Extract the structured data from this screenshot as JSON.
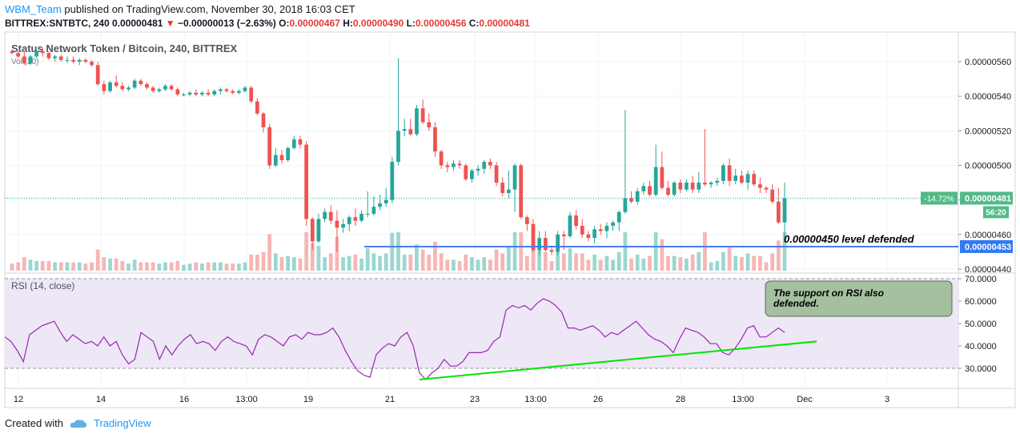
{
  "header": {
    "user": "WBM_Team",
    "published": "published on TradingView.com, November 30, 2018 16:03 CET",
    "symbol": "BITTREX:SNTBTC, 240",
    "last": "0.00000481",
    "change": "−0.00000013 (−2.63%)",
    "o_label": "O:",
    "o_value": "0.00000467",
    "h_label": "H:",
    "h_value": "0.00000490",
    "l_label": "L:",
    "l_value": "0.00000456",
    "c_label": "C:",
    "c_value": "0.00000481"
  },
  "footer": {
    "created_with": "Created with",
    "brand": "TradingView"
  },
  "colors": {
    "up": "#26a69a",
    "down": "#ef5350",
    "support_line": "#2962ff",
    "rsi_line": "#9c27b0",
    "rsi_trend": "#00e600",
    "rsi_bg": "#ede7f6"
  },
  "chart_data": {
    "type": "candlestick",
    "title": "Status Network Token / Bitcoin, 240, BITTREX",
    "volume_label": "Vol (20)",
    "x_ticks": [
      "12",
      "14",
      "16",
      "13:00",
      "19",
      "21",
      "23",
      "13:00",
      "26",
      "28",
      "13:00",
      "Dec",
      "3"
    ],
    "price_axis": {
      "ticks": [
        "0.00000560",
        "0.00000540",
        "0.00000520",
        "0.00000500",
        "0.00000480",
        "0.00000460",
        "0.00000440"
      ],
      "ylim": [
        4.4e-06,
        5.6e-06
      ]
    },
    "price_labels": {
      "change_pct": "-14.72%",
      "last": "0.00000481",
      "countdown": "56:20",
      "support": "0.00000453"
    },
    "support_level": 4.53e-06,
    "candles": [
      [
        5.66,
        5.67,
        5.64,
        5.65
      ],
      [
        5.65,
        5.66,
        5.62,
        5.63
      ],
      [
        5.63,
        5.66,
        5.58,
        5.59
      ],
      [
        5.59,
        5.64,
        5.58,
        5.63
      ],
      [
        5.63,
        5.67,
        5.62,
        5.66
      ],
      [
        5.66,
        5.68,
        5.63,
        5.65
      ],
      [
        5.65,
        5.66,
        5.61,
        5.62
      ],
      [
        5.62,
        5.64,
        5.6,
        5.63
      ],
      [
        5.63,
        5.64,
        5.6,
        5.61
      ],
      [
        5.61,
        5.63,
        5.59,
        5.61
      ],
      [
        5.61,
        5.63,
        5.59,
        5.6
      ],
      [
        5.6,
        5.62,
        5.58,
        5.61
      ],
      [
        5.61,
        5.62,
        5.59,
        5.6
      ],
      [
        5.6,
        5.61,
        5.57,
        5.58
      ],
      [
        5.58,
        5.6,
        5.46,
        5.47
      ],
      [
        5.47,
        5.49,
        5.41,
        5.43
      ],
      [
        5.43,
        5.49,
        5.42,
        5.48
      ],
      [
        5.48,
        5.52,
        5.45,
        5.46
      ],
      [
        5.46,
        5.48,
        5.43,
        5.44
      ],
      [
        5.44,
        5.46,
        5.43,
        5.45
      ],
      [
        5.45,
        5.5,
        5.44,
        5.49
      ],
      [
        5.49,
        5.5,
        5.46,
        5.47
      ],
      [
        5.47,
        5.48,
        5.44,
        5.45
      ],
      [
        5.45,
        5.46,
        5.42,
        5.43
      ],
      [
        5.43,
        5.45,
        5.42,
        5.44
      ],
      [
        5.44,
        5.47,
        5.43,
        5.46
      ],
      [
        5.46,
        5.47,
        5.43,
        5.44
      ],
      [
        5.44,
        5.45,
        5.4,
        5.41
      ],
      [
        5.41,
        5.42,
        5.4,
        5.41
      ],
      [
        5.41,
        5.43,
        5.4,
        5.42
      ],
      [
        5.42,
        5.44,
        5.4,
        5.41
      ],
      [
        5.41,
        5.43,
        5.4,
        5.42
      ],
      [
        5.42,
        5.44,
        5.4,
        5.41
      ],
      [
        5.41,
        5.44,
        5.4,
        5.43
      ],
      [
        5.43,
        5.45,
        5.41,
        5.44
      ],
      [
        5.44,
        5.45,
        5.42,
        5.43
      ],
      [
        5.43,
        5.44,
        5.41,
        5.42
      ],
      [
        5.42,
        5.44,
        5.41,
        5.43
      ],
      [
        5.43,
        5.46,
        5.42,
        5.45
      ],
      [
        5.45,
        5.46,
        5.36,
        5.37
      ],
      [
        5.37,
        5.39,
        5.29,
        5.3
      ],
      [
        5.3,
        5.31,
        5.19,
        5.22
      ],
      [
        5.22,
        5.24,
        4.98,
        5.0
      ],
      [
        5.0,
        5.1,
        4.99,
        5.06
      ],
      [
        5.06,
        5.09,
        5.01,
        5.03
      ],
      [
        5.03,
        5.11,
        5.02,
        5.1
      ],
      [
        5.1,
        5.17,
        5.09,
        5.15
      ],
      [
        5.15,
        5.17,
        5.1,
        5.12
      ],
      [
        5.12,
        5.14,
        4.65,
        4.69
      ],
      [
        4.69,
        4.7,
        4.51,
        4.56
      ],
      [
        4.56,
        4.72,
        4.55,
        4.69
      ],
      [
        4.69,
        4.75,
        4.67,
        4.73
      ],
      [
        4.73,
        4.77,
        4.66,
        4.68
      ],
      [
        4.68,
        4.74,
        4.5,
        4.64
      ],
      [
        4.64,
        4.69,
        4.61,
        4.66
      ],
      [
        4.66,
        4.71,
        4.62,
        4.7
      ],
      [
        4.7,
        4.75,
        4.65,
        4.68
      ],
      [
        4.68,
        4.74,
        4.67,
        4.72
      ],
      [
        4.72,
        4.85,
        4.7,
        4.72
      ],
      [
        4.72,
        4.82,
        4.71,
        4.76
      ],
      [
        4.76,
        4.83,
        4.74,
        4.78
      ],
      [
        4.78,
        4.87,
        4.76,
        4.8
      ],
      [
        4.8,
        5.05,
        4.78,
        5.02
      ],
      [
        5.02,
        5.62,
        5.0,
        5.2
      ],
      [
        5.2,
        5.27,
        5.17,
        5.21
      ],
      [
        5.21,
        5.27,
        5.17,
        5.18
      ],
      [
        5.18,
        5.35,
        5.17,
        5.33
      ],
      [
        5.33,
        5.38,
        5.24,
        5.25
      ],
      [
        5.25,
        5.3,
        5.2,
        5.22
      ],
      [
        5.22,
        5.25,
        5.05,
        5.08
      ],
      [
        5.08,
        5.09,
        4.98,
        5.0
      ],
      [
        5.0,
        5.02,
        4.96,
        4.99
      ],
      [
        4.99,
        5.03,
        4.97,
        5.01
      ],
      [
        5.01,
        5.03,
        4.98,
        5.0
      ],
      [
        5.0,
        5.01,
        4.91,
        4.92
      ],
      [
        4.92,
        4.98,
        4.9,
        4.97
      ],
      [
        4.97,
        5.0,
        4.94,
        4.98
      ],
      [
        4.98,
        5.03,
        4.95,
        5.02
      ],
      [
        5.02,
        5.04,
        4.98,
        5.0
      ],
      [
        5.0,
        5.02,
        4.88,
        4.9
      ],
      [
        4.9,
        4.93,
        4.82,
        4.84
      ],
      [
        4.84,
        4.97,
        4.81,
        4.86
      ],
      [
        4.86,
        5.01,
        4.73,
        5.0
      ],
      [
        5.0,
        5.01,
        4.69,
        4.7
      ],
      [
        4.7,
        4.71,
        4.62,
        4.66
      ],
      [
        4.66,
        4.69,
        4.5,
        4.51
      ],
      [
        4.51,
        4.62,
        4.48,
        4.58
      ],
      [
        4.58,
        4.62,
        4.5,
        4.51
      ],
      [
        4.51,
        4.53,
        4.48,
        4.5
      ],
      [
        4.5,
        4.62,
        4.48,
        4.6
      ],
      [
        4.6,
        4.62,
        4.51,
        4.59
      ],
      [
        4.59,
        4.73,
        4.58,
        4.71
      ],
      [
        4.71,
        4.74,
        4.63,
        4.65
      ],
      [
        4.65,
        4.69,
        4.58,
        4.6
      ],
      [
        4.6,
        4.62,
        4.56,
        4.58
      ],
      [
        4.58,
        4.65,
        4.55,
        4.63
      ],
      [
        4.63,
        4.66,
        4.6,
        4.62
      ],
      [
        4.62,
        4.67,
        4.58,
        4.65
      ],
      [
        4.65,
        4.68,
        4.62,
        4.67
      ],
      [
        4.67,
        4.74,
        4.62,
        4.73
      ],
      [
        4.73,
        5.32,
        4.72,
        4.81
      ],
      [
        4.81,
        4.85,
        4.78,
        4.79
      ],
      [
        4.79,
        4.87,
        4.77,
        4.85
      ],
      [
        4.85,
        4.9,
        4.83,
        4.88
      ],
      [
        4.88,
        4.91,
        4.82,
        4.83
      ],
      [
        4.83,
        5.12,
        4.82,
        4.99
      ],
      [
        4.99,
        5.08,
        4.86,
        4.87
      ],
      [
        4.87,
        4.91,
        4.82,
        4.83
      ],
      [
        4.83,
        4.91,
        4.82,
        4.9
      ],
      [
        4.9,
        4.92,
        4.84,
        4.86
      ],
      [
        4.86,
        4.92,
        4.85,
        4.9
      ],
      [
        4.9,
        4.94,
        4.84,
        4.86
      ],
      [
        4.86,
        4.96,
        4.84,
        4.9
      ],
      [
        4.9,
        5.21,
        4.88,
        4.89
      ],
      [
        4.89,
        4.91,
        4.87,
        4.9
      ],
      [
        4.9,
        4.93,
        4.88,
        4.91
      ],
      [
        4.91,
        5.01,
        4.89,
        5.0
      ],
      [
        5.0,
        5.04,
        4.88,
        4.91
      ],
      [
        4.91,
        4.98,
        4.89,
        4.94
      ],
      [
        4.94,
        4.97,
        4.89,
        4.9
      ],
      [
        4.9,
        4.97,
        4.86,
        4.95
      ],
      [
        4.95,
        4.97,
        4.88,
        4.89
      ],
      [
        4.89,
        4.93,
        4.84,
        4.87
      ],
      [
        4.87,
        4.88,
        4.84,
        4.86
      ],
      [
        4.86,
        4.89,
        4.78,
        4.79
      ],
      [
        4.79,
        4.87,
        4.66,
        4.67
      ],
      [
        4.67,
        4.9,
        4.56,
        4.81
      ]
    ],
    "candle_encoding": "open, high, low, close in units of 1e-6 BTC",
    "volume_colors_up_first": true,
    "rsi": {
      "label": "RSI (14, close)",
      "ticks": [
        "70.0000",
        "60.0000",
        "50.0000",
        "40.0000",
        "30.0000"
      ],
      "levels": [
        70,
        30
      ],
      "ylim": [
        22,
        72
      ],
      "values": [
        44,
        42,
        38,
        33,
        45,
        47,
        49,
        50,
        51,
        46,
        42,
        45,
        43,
        41,
        42,
        40,
        44,
        40,
        42,
        36,
        32,
        34,
        46,
        44,
        42,
        34,
        40,
        36,
        40,
        43,
        45,
        41,
        42,
        41,
        38,
        42,
        44,
        42,
        41,
        40,
        36,
        43,
        45,
        44,
        42,
        40,
        44,
        45,
        43,
        46,
        45,
        45,
        46,
        48,
        44,
        38,
        33,
        29,
        27,
        26,
        36,
        39,
        41,
        40,
        44,
        46,
        40,
        28,
        25,
        28,
        30,
        34,
        31,
        31,
        33,
        37,
        37,
        37,
        38,
        42,
        44,
        56,
        58,
        57,
        58,
        56,
        59,
        61,
        60,
        58,
        55,
        48,
        48,
        47,
        48,
        49,
        47,
        44,
        46,
        45,
        47,
        49,
        51,
        48,
        45,
        43,
        42,
        40,
        37,
        43,
        48,
        47,
        46,
        44,
        41,
        41,
        37,
        36,
        39,
        43,
        48,
        49,
        44,
        44,
        46,
        48,
        46
      ],
      "trend_from_index": 67,
      "trend_start": 25,
      "trend_end": 42
    },
    "annotations": {
      "price_note": "0.00000450 level defended",
      "rsi_note": "The support on RSI also defended."
    }
  }
}
